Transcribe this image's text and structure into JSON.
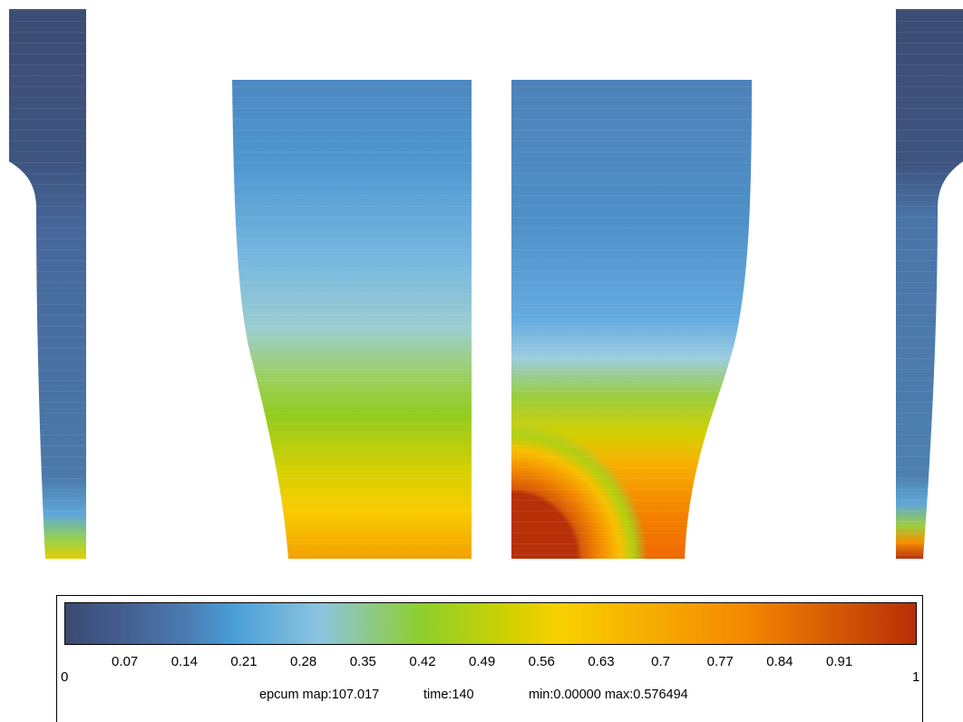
{
  "chart_data": {
    "type": "heatmap",
    "title": "",
    "colorbar": {
      "min_label": "0",
      "max_label": "1",
      "ticks": [
        "0.07",
        "0.14",
        "0.21",
        "0.28",
        "0.35",
        "0.42",
        "0.49",
        "0.56",
        "0.63",
        "0.7",
        "0.77",
        "0.84",
        "0.91"
      ],
      "tick_values": [
        0.07,
        0.14,
        0.21,
        0.28,
        0.35,
        0.42,
        0.49,
        0.56,
        0.63,
        0.7,
        0.77,
        0.84,
        0.91
      ],
      "colors": [
        "#3b4a72",
        "#4b7ab0",
        "#4a9fd8",
        "#8cc4e0",
        "#8ecf2a",
        "#d0d000",
        "#f8d000",
        "#f48800",
        "#b82e08"
      ]
    },
    "caption": {
      "field": "epcum map:107.017",
      "time": "time:140",
      "range": "min:0.00000 max:0.576494"
    },
    "panels": [
      {
        "name": "left-edge-view",
        "bottom_value": 0.52
      },
      {
        "name": "center-left-view",
        "bottom_value": 0.55
      },
      {
        "name": "center-right-view",
        "bottom_value": 1.0
      },
      {
        "name": "right-edge-view",
        "bottom_value": 1.0
      }
    ]
  }
}
